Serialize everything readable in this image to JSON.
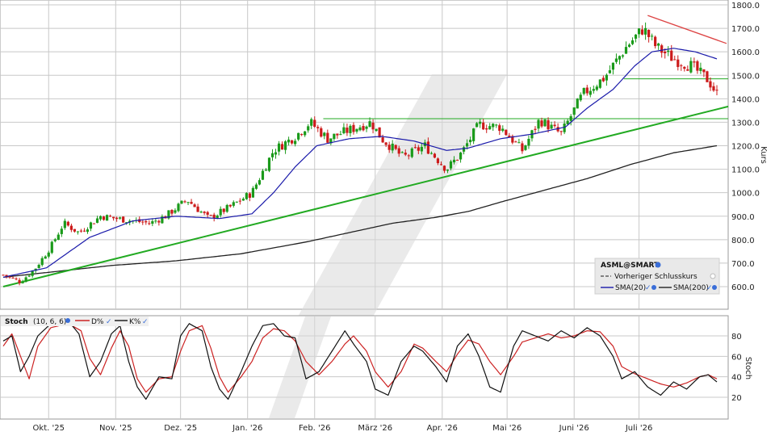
{
  "chart_data": [
    {
      "type": "candlestick",
      "symbol": "ASML@SMART",
      "ylabel": "Kurs",
      "ylim": [
        500,
        1800
      ],
      "yticks": [
        "1800.0",
        "1700.0",
        "1600.0",
        "1500.0",
        "1400.0",
        "1300.0",
        "1200.0",
        "1100.0",
        "1000.0",
        "900.0",
        "800.0",
        "700.0",
        "600.0"
      ],
      "ytick_values": [
        1800,
        1700,
        1600,
        1500,
        1400,
        1300,
        1200,
        1100,
        1000,
        900,
        800,
        700,
        600
      ],
      "xlabels": [
        "Okt. '25",
        "Nov. '25",
        "Dez. '25",
        "Jan. '26",
        "Feb. '26",
        "März '26",
        "Apr. '26",
        "Mai '26",
        "Juni '26",
        "Juli '26"
      ],
      "xlabel_days": [
        21,
        52,
        82,
        113,
        144,
        172,
        203,
        233,
        264,
        294
      ],
      "day_range": [
        0,
        330
      ],
      "close_anchors": [
        [
          0,
          650
        ],
        [
          8,
          620
        ],
        [
          15,
          680
        ],
        [
          22,
          770
        ],
        [
          28,
          870
        ],
        [
          35,
          830
        ],
        [
          45,
          900
        ],
        [
          60,
          880
        ],
        [
          68,
          870
        ],
        [
          75,
          900
        ],
        [
          85,
          970
        ],
        [
          95,
          890
        ],
        [
          105,
          940
        ],
        [
          115,
          1000
        ],
        [
          125,
          1180
        ],
        [
          135,
          1240
        ],
        [
          142,
          1300
        ],
        [
          150,
          1230
        ],
        [
          158,
          1260
        ],
        [
          170,
          1300
        ],
        [
          175,
          1230
        ],
        [
          185,
          1150
        ],
        [
          195,
          1200
        ],
        [
          205,
          1100
        ],
        [
          212,
          1170
        ],
        [
          220,
          1290
        ],
        [
          230,
          1280
        ],
        [
          240,
          1180
        ],
        [
          248,
          1310
        ],
        [
          258,
          1250
        ],
        [
          268,
          1420
        ],
        [
          278,
          1490
        ],
        [
          288,
          1620
        ],
        [
          296,
          1700
        ],
        [
          302,
          1620
        ],
        [
          310,
          1570
        ],
        [
          318,
          1540
        ],
        [
          326,
          1480
        ],
        [
          328,
          1450
        ],
        [
          330,
          1420
        ]
      ],
      "sma20_anchors": [
        [
          0,
          640
        ],
        [
          20,
          680
        ],
        [
          40,
          810
        ],
        [
          60,
          880
        ],
        [
          80,
          900
        ],
        [
          100,
          890
        ],
        [
          115,
          910
        ],
        [
          125,
          1000
        ],
        [
          135,
          1110
        ],
        [
          145,
          1200
        ],
        [
          160,
          1230
        ],
        [
          175,
          1240
        ],
        [
          190,
          1220
        ],
        [
          205,
          1180
        ],
        [
          215,
          1190
        ],
        [
          230,
          1230
        ],
        [
          245,
          1250
        ],
        [
          260,
          1280
        ],
        [
          270,
          1360
        ],
        [
          282,
          1440
        ],
        [
          292,
          1540
        ],
        [
          300,
          1600
        ],
        [
          310,
          1615
        ],
        [
          320,
          1600
        ],
        [
          330,
          1570
        ]
      ],
      "sma200_anchors": [
        [
          0,
          640
        ],
        [
          20,
          660
        ],
        [
          50,
          690
        ],
        [
          80,
          710
        ],
        [
          110,
          740
        ],
        [
          140,
          790
        ],
        [
          160,
          830
        ],
        [
          180,
          870
        ],
        [
          200,
          895
        ],
        [
          215,
          920
        ],
        [
          230,
          960
        ],
        [
          250,
          1010
        ],
        [
          270,
          1060
        ],
        [
          290,
          1120
        ],
        [
          310,
          1170
        ],
        [
          330,
          1200
        ]
      ],
      "support_line": [
        [
          0,
          600
        ],
        [
          330,
          1350
        ]
      ],
      "horizontal_line_1": {
        "value": 1315,
        "from_day": 148
      },
      "horizontal_line_2": {
        "value": 1485,
        "from_day": 287
      },
      "resistance_line": [
        [
          298,
          1755
        ],
        [
          330,
          1615
        ]
      ],
      "colors": {
        "up": "#1a9a1a",
        "down": "#cc1a1a",
        "sma20": "#1a1aaa",
        "sma200": "#222222",
        "support": "#22aa22",
        "resistance": "#dd4444",
        "hline": "#22aa22",
        "grid": "#c8c8c8"
      },
      "legend": {
        "title": "ASML@SMART",
        "items": [
          {
            "label": "Vorheriger Schlusskurs"
          },
          {
            "label": "SMA(20)"
          },
          {
            "label": "SMA(200)"
          }
        ]
      }
    },
    {
      "type": "line",
      "title": "Stoch",
      "params": "(10, 6, 6)",
      "ylabel": "Stoch",
      "ylim": [
        0,
        100
      ],
      "yticks": [
        "80",
        "60",
        "40",
        "20"
      ],
      "ytick_values": [
        80,
        60,
        40,
        20
      ],
      "series": [
        {
          "name": "D%",
          "color": "#cc2222",
          "anchors": [
            [
              0,
              70
            ],
            [
              4,
              82
            ],
            [
              8,
              60
            ],
            [
              12,
              38
            ],
            [
              16,
              70
            ],
            [
              22,
              88
            ],
            [
              30,
              92
            ],
            [
              36,
              85
            ],
            [
              40,
              58
            ],
            [
              45,
              42
            ],
            [
              50,
              68
            ],
            [
              54,
              85
            ],
            [
              58,
              70
            ],
            [
              62,
              38
            ],
            [
              66,
              25
            ],
            [
              72,
              38
            ],
            [
              78,
              40
            ],
            [
              82,
              65
            ],
            [
              86,
              85
            ],
            [
              92,
              90
            ],
            [
              96,
              68
            ],
            [
              100,
              40
            ],
            [
              104,
              25
            ],
            [
              110,
              40
            ],
            [
              115,
              55
            ],
            [
              120,
              78
            ],
            [
              125,
              87
            ],
            [
              130,
              85
            ],
            [
              135,
              75
            ],
            [
              140,
              55
            ],
            [
              146,
              42
            ],
            [
              152,
              55
            ],
            [
              158,
              72
            ],
            [
              162,
              80
            ],
            [
              168,
              65
            ],
            [
              172,
              45
            ],
            [
              178,
              30
            ],
            [
              184,
              45
            ],
            [
              190,
              72
            ],
            [
              194,
              68
            ],
            [
              200,
              55
            ],
            [
              205,
              45
            ],
            [
              210,
              62
            ],
            [
              215,
              76
            ],
            [
              220,
              72
            ],
            [
              225,
              55
            ],
            [
              230,
              42
            ],
            [
              236,
              60
            ],
            [
              240,
              74
            ],
            [
              246,
              78
            ],
            [
              252,
              82
            ],
            [
              258,
              78
            ],
            [
              264,
              80
            ],
            [
              270,
              85
            ],
            [
              276,
              84
            ],
            [
              282,
              70
            ],
            [
              286,
              50
            ],
            [
              292,
              43
            ],
            [
              298,
              38
            ],
            [
              304,
              33
            ],
            [
              310,
              30
            ],
            [
              316,
              34
            ],
            [
              322,
              40
            ],
            [
              326,
              42
            ],
            [
              330,
              38
            ]
          ]
        },
        {
          "name": "K%",
          "color": "#111111",
          "anchors": [
            [
              0,
              75
            ],
            [
              4,
              80
            ],
            [
              8,
              45
            ],
            [
              12,
              60
            ],
            [
              16,
              80
            ],
            [
              22,
              92
            ],
            [
              30,
              95
            ],
            [
              35,
              82
            ],
            [
              40,
              40
            ],
            [
              45,
              55
            ],
            [
              50,
              82
            ],
            [
              54,
              90
            ],
            [
              58,
              55
            ],
            [
              62,
              30
            ],
            [
              66,
              18
            ],
            [
              72,
              40
            ],
            [
              78,
              38
            ],
            [
              82,
              80
            ],
            [
              86,
              92
            ],
            [
              92,
              85
            ],
            [
              96,
              50
            ],
            [
              100,
              28
            ],
            [
              104,
              18
            ],
            [
              110,
              45
            ],
            [
              115,
              70
            ],
            [
              120,
              90
            ],
            [
              125,
              92
            ],
            [
              130,
              80
            ],
            [
              135,
              78
            ],
            [
              140,
              38
            ],
            [
              146,
              45
            ],
            [
              152,
              65
            ],
            [
              158,
              85
            ],
            [
              162,
              72
            ],
            [
              168,
              55
            ],
            [
              172,
              28
            ],
            [
              178,
              22
            ],
            [
              184,
              55
            ],
            [
              190,
              70
            ],
            [
              194,
              65
            ],
            [
              200,
              50
            ],
            [
              205,
              35
            ],
            [
              210,
              70
            ],
            [
              215,
              82
            ],
            [
              220,
              60
            ],
            [
              225,
              30
            ],
            [
              230,
              25
            ],
            [
              236,
              70
            ],
            [
              240,
              85
            ],
            [
              246,
              80
            ],
            [
              252,
              75
            ],
            [
              258,
              85
            ],
            [
              264,
              78
            ],
            [
              270,
              88
            ],
            [
              276,
              80
            ],
            [
              282,
              60
            ],
            [
              286,
              38
            ],
            [
              292,
              45
            ],
            [
              298,
              30
            ],
            [
              304,
              22
            ],
            [
              310,
              35
            ],
            [
              316,
              28
            ],
            [
              322,
              40
            ],
            [
              326,
              42
            ],
            [
              330,
              35
            ]
          ]
        }
      ]
    }
  ]
}
